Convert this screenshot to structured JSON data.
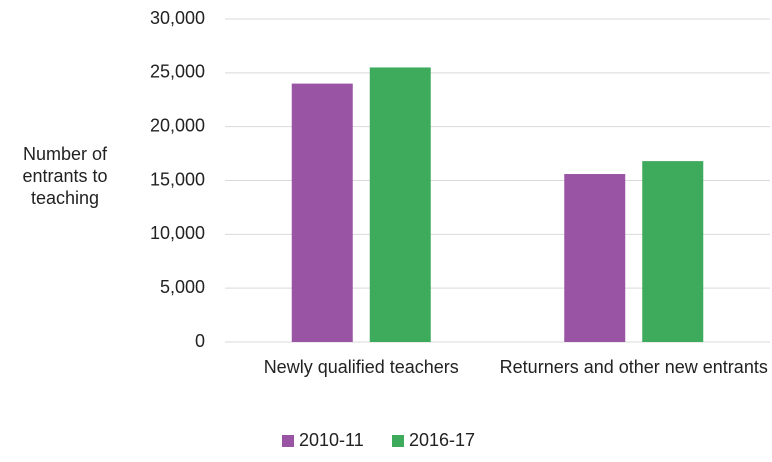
{
  "chart_data": {
    "type": "bar",
    "y_label": "Number of entrants to teaching",
    "categories": [
      "Newly qualified teachers",
      "Returners and other new entrants"
    ],
    "series": [
      {
        "name": "2010-11",
        "color": "#9954a4",
        "values": [
          24000,
          15600
        ]
      },
      {
        "name": "2016-17",
        "color": "#3daa5c",
        "values": [
          25500,
          16800
        ]
      }
    ],
    "ylim": [
      0,
      30000
    ],
    "yticks": [
      0,
      {
        "value": 5000,
        "label": "5,000"
      },
      {
        "value": 10000,
        "label": "10,000"
      },
      {
        "value": 15000,
        "label": "15,000"
      },
      {
        "value": 20000,
        "label": "20,000"
      },
      {
        "value": 25000,
        "label": "25,000"
      },
      {
        "value": 30000,
        "label": "30,000"
      }
    ],
    "grid": true,
    "legend": "bottom"
  }
}
